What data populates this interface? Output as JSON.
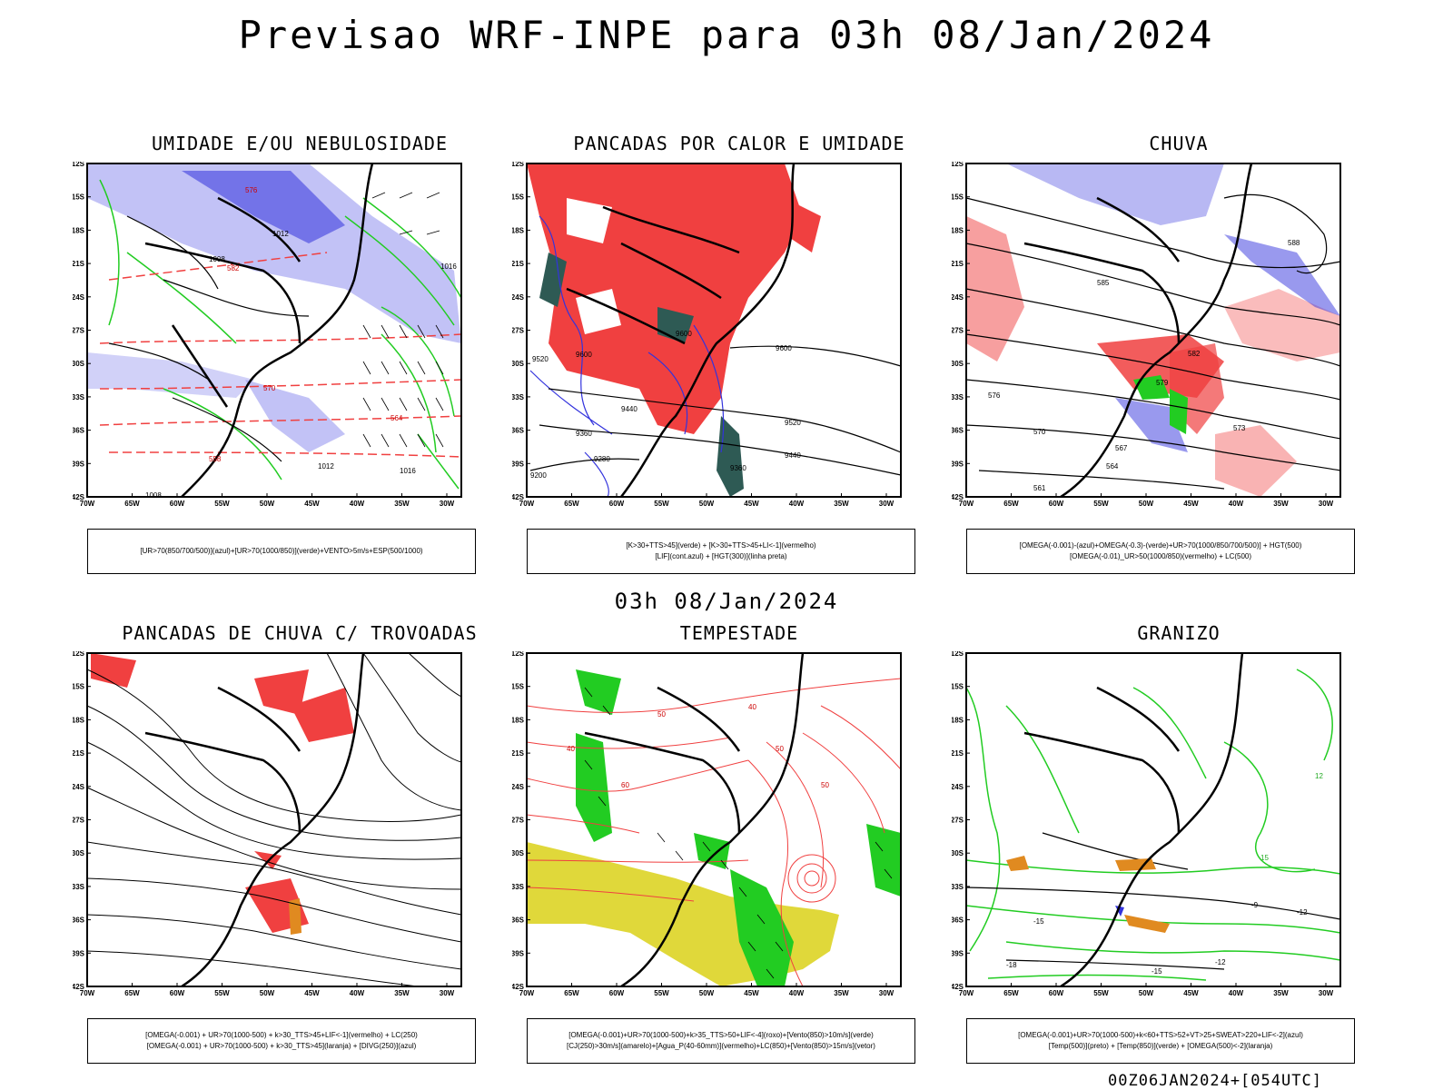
{
  "header": {
    "title": "Previsao WRF-INPE  para 03h 08/Jan/2024"
  },
  "mid_title": "03h 08/Jan/2024",
  "footer": "00Z06JAN2024+[054UTC]",
  "axes": {
    "lat_labels": [
      "12S",
      "15S",
      "18S",
      "21S",
      "24S",
      "27S",
      "30S",
      "33S",
      "36S",
      "39S",
      "42S"
    ],
    "lon_labels": [
      "70W",
      "65W",
      "60W",
      "55W",
      "50W",
      "45W",
      "40W",
      "35W",
      "30W"
    ]
  },
  "colors": {
    "blue": "#3333dd",
    "lavender": "#9a9af0",
    "green": "#22cc22",
    "red": "#f04040",
    "dark_teal": "#2e5a54",
    "yellow": "#e0d83a",
    "orange": "#e08a20",
    "purple": "#9922cc"
  },
  "panels": [
    {
      "title": "UMIDADE E/OU NEBULOSIDADE",
      "legend": [
        "[UR>70(850/700/500)](azul)+[UR>70(1000/850)](verde)+VENTO>5m/s+ESP(500/1000)"
      ],
      "labels": [
        "1012",
        "1008",
        "1016",
        "582",
        "576",
        "570",
        "564",
        "558",
        "1012",
        "1008",
        "1016"
      ]
    },
    {
      "title": "PANCADAS POR CALOR E UMIDADE",
      "legend": [
        "[K>30+TTS>45](verde) + [K>30+TTS>45+LI<-1](vermelho)",
        "[LIF](cont.azul) + [HGT(300)](linha preta)"
      ],
      "labels": [
        "9600",
        "9520",
        "9600",
        "9440",
        "9360",
        "9520",
        "9440",
        "9200",
        "9280",
        "9600",
        "9360"
      ]
    },
    {
      "title": "CHUVA",
      "legend": [
        "[OMEGA(-0.001)-(azul)+OMEGA(-0.3)-(verde)+UR>70(1000/850/700/500)] + HGT(500)",
        "[OMEGA(-0.01)_UR>50(1000/850)(vermelho) + LC(500)"
      ],
      "labels": [
        "585",
        "582",
        "579",
        "576",
        "573",
        "570",
        "567",
        "564",
        "561",
        "588"
      ]
    },
    {
      "title": "PANCADAS DE CHUVA C/ TROVOADAS",
      "legend": [
        "[OMEGA(-0.001) + UR>70(1000-500) + k>30_TTS>45+LIF<-1](vermelho) + LC(250)",
        "[OMEGA(-0.001) + UR>70(1000-500) + k>30_TTS>45](laranja) + [DIVG(250)](azul)"
      ],
      "labels": []
    },
    {
      "title": "TEMPESTADE",
      "legend": [
        "[OMEGA(-0.001)+UR>70(1000-500)+k>35_TTS>50+LIF<-4](roxo)+[Vento(850)>10m/s](verde)",
        "[CJ(250)>30m/s](amarelo)+[Agua_P(40-60mm)](vermelho)+LC(850)+[Vento(850)>15m/s](vetor)"
      ],
      "labels": [
        "50",
        "40",
        "60",
        "50",
        "40",
        "50"
      ]
    },
    {
      "title": "GRANIZO",
      "legend": [
        "[OMEGA(-0.001)+UR>70(1000-500)+k<60+TTS>52+VT>25+SWEAT>220+LIF<-2](azul)",
        "[Temp(500)](preto) + [Temp(850)](verde) + [OMEGA(500)<-2](laranja)"
      ],
      "labels": [
        "-15",
        "-12",
        "-15",
        "-18",
        "-12",
        "15",
        "12",
        "-9"
      ]
    }
  ]
}
